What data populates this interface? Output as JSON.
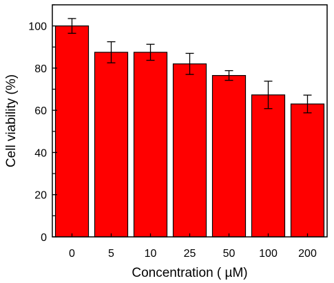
{
  "chart_data": {
    "type": "bar",
    "title": "",
    "xlabel": "Concentration ( µM)",
    "ylabel": "Cell viability (%)",
    "categories": [
      "0",
      "5",
      "10",
      "25",
      "50",
      "100",
      "200"
    ],
    "series": [
      {
        "values": [
          100,
          87.5,
          87.5,
          82,
          76.5,
          67.3,
          63
        ],
        "errors": [
          3.5,
          5,
          3.8,
          5,
          2.3,
          6.5,
          4.2
        ],
        "color": "#ff0000"
      }
    ],
    "ylim": [
      0,
      110
    ],
    "yticks": [
      0,
      20,
      40,
      60,
      80,
      100
    ],
    "grid": false,
    "legend": "none"
  }
}
